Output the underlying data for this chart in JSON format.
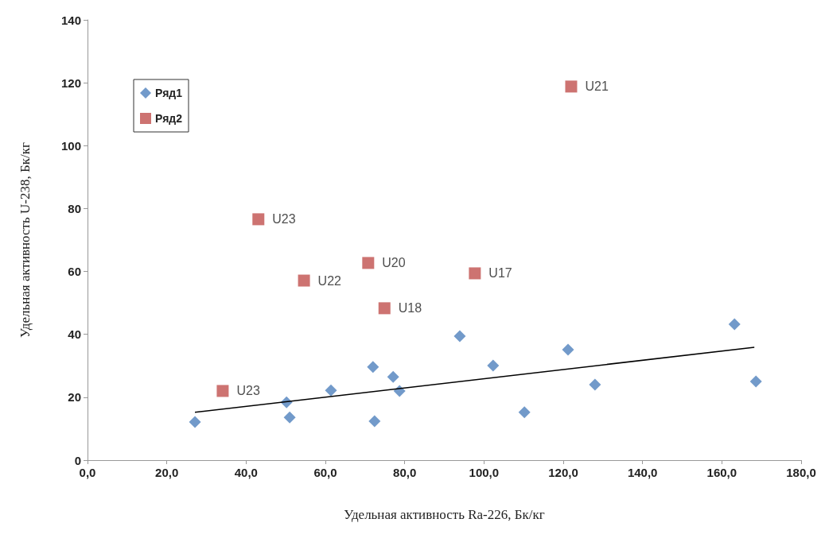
{
  "chart_data": {
    "type": "scatter",
    "xlabel": "Удельная активность Ra-226, Бк/кг",
    "ylabel": "Удельная активность U-238, Бк/кг",
    "xlim": [
      0,
      180
    ],
    "xticks": [
      {
        "value": 0,
        "label": "0,0"
      },
      {
        "value": 20,
        "label": "20,0"
      },
      {
        "value": 40,
        "label": "40,0"
      },
      {
        "value": 60,
        "label": "60,0"
      },
      {
        "value": 80,
        "label": "80,0"
      },
      {
        "value": 100,
        "label": "100,0"
      },
      {
        "value": 120,
        "label": "120,0"
      },
      {
        "value": 140,
        "label": "140,0"
      },
      {
        "value": 160,
        "label": "160,0"
      },
      {
        "value": 180,
        "label": "180,0"
      }
    ],
    "ylim": [
      0,
      140
    ],
    "yticks": [
      0,
      20,
      40,
      60,
      80,
      100,
      120,
      140
    ],
    "grid": false,
    "legend": "top left",
    "series": [
      {
        "name": "Ряд1",
        "color": "#4f81bd",
        "marker": "diamond",
        "x": [
          27.1,
          50.2,
          51.0,
          61.4,
          72.0,
          72.4,
          77.1,
          78.7,
          93.9,
          102.3,
          110.2,
          121.2,
          128.0,
          163.2,
          168.6
        ],
        "values": [
          12.1,
          18.4,
          13.6,
          22.2,
          29.6,
          12.4,
          26.5,
          22.0,
          39.4,
          30.1,
          15.2,
          35.1,
          24.0,
          43.2,
          25.0
        ]
      },
      {
        "name": "Ряд2",
        "color": "#c0504d",
        "marker": "square",
        "x": [
          34.1,
          43.1,
          54.6,
          70.8,
          74.9,
          97.7,
          122.0
        ],
        "values": [
          22.0,
          76.6,
          57.1,
          62.7,
          48.3,
          59.4,
          118.8
        ],
        "value_labels": [
          "U23",
          "U23",
          "U22",
          "U20",
          "U18",
          "U17",
          "U21"
        ]
      },
      {
        "type": "line",
        "color": "#000000",
        "marker": "none",
        "x": [
          27.1,
          168.2
        ],
        "values": [
          15.2,
          35.9
        ]
      }
    ]
  }
}
